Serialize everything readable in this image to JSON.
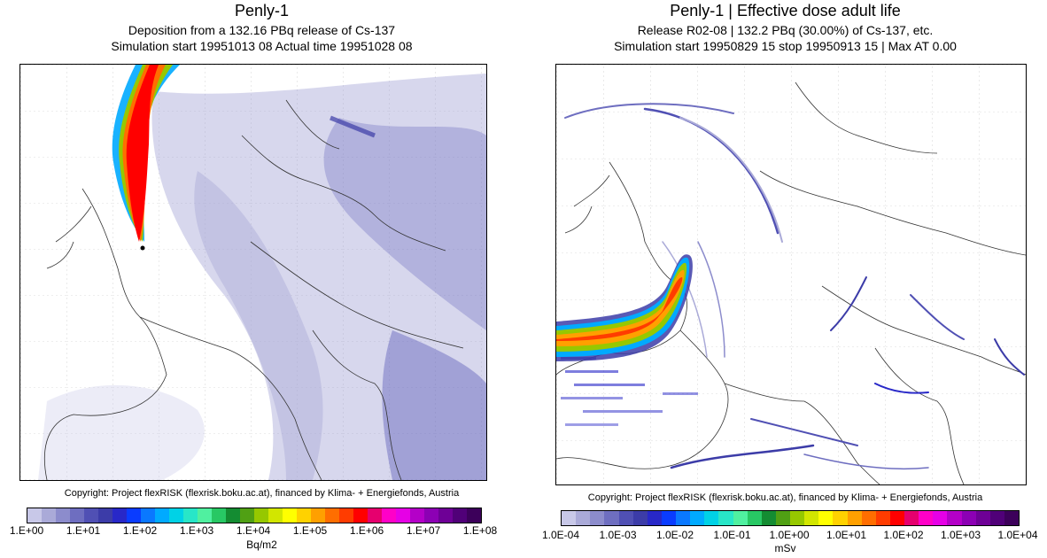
{
  "left_panel": {
    "title": "Penly-1",
    "subtitle1": "Deposition from a  132.16 PBq release of Cs-137",
    "subtitle2": "Simulation start 19951013 08    Actual time  19951028 08",
    "copyright": "Copyright: Project flexRISK (flexrisk.boku.ac.at), financed by Klima- + Energiefonds, Austria",
    "colorbar": {
      "unit": "Bq/m2",
      "ticks": [
        "1.E+00",
        "1.E+01",
        "1.E+02",
        "1.E+03",
        "1.E+04",
        "1.E+05",
        "1.E+06",
        "1.E+07",
        "1.E+08"
      ],
      "colors": [
        "#c8c8e8",
        "#aaaad8",
        "#8c8ccc",
        "#6e6ec0",
        "#5050b4",
        "#3c3ca8",
        "#2828c8",
        "#0a3cff",
        "#0a78ff",
        "#00aaff",
        "#00d2e6",
        "#28e6c8",
        "#50f0a0",
        "#28c864",
        "#148c32",
        "#50a014",
        "#96c800",
        "#d2e600",
        "#ffff00",
        "#ffd200",
        "#ffa000",
        "#ff6e00",
        "#ff3c00",
        "#ff0000",
        "#e6006e",
        "#ff00c8",
        "#e600e6",
        "#b400c8",
        "#8c00b4",
        "#6e0096",
        "#500078",
        "#3c005a"
      ]
    }
  },
  "right_panel": {
    "title": "Penly-1 | Effective dose adult  life",
    "subtitle1": "Release R02-08 | 132.2 PBq (30.00%) of Cs-137, etc.",
    "subtitle2": "Simulation start 19950829 15  stop 19950913 15 | Max AT     0.00",
    "copyright": "Copyright: Project flexRISK (flexrisk.boku.ac.at), financed by Klima- + Energiefonds, Austria",
    "colorbar": {
      "unit": "mSv",
      "ticks": [
        "1.0E-04",
        "1.0E-03",
        "1.0E-02",
        "1.0E-01",
        "1.0E+00",
        "1.0E+01",
        "1.0E+02",
        "1.0E+03",
        "1.0E+04"
      ],
      "colors": [
        "#c8c8e8",
        "#aaaad8",
        "#8c8ccc",
        "#6e6ec0",
        "#5050b4",
        "#3c3ca8",
        "#2828c8",
        "#0a3cff",
        "#0a78ff",
        "#00aaff",
        "#00d2e6",
        "#28e6c8",
        "#50f0a0",
        "#28c864",
        "#148c32",
        "#50a014",
        "#96c800",
        "#d2e600",
        "#ffff00",
        "#ffd200",
        "#ffa000",
        "#ff6e00",
        "#ff3c00",
        "#ff0000",
        "#e6006e",
        "#ff00c8",
        "#e600e6",
        "#b400c8",
        "#8c00b4",
        "#6e0096",
        "#500078",
        "#3c005a"
      ]
    }
  }
}
